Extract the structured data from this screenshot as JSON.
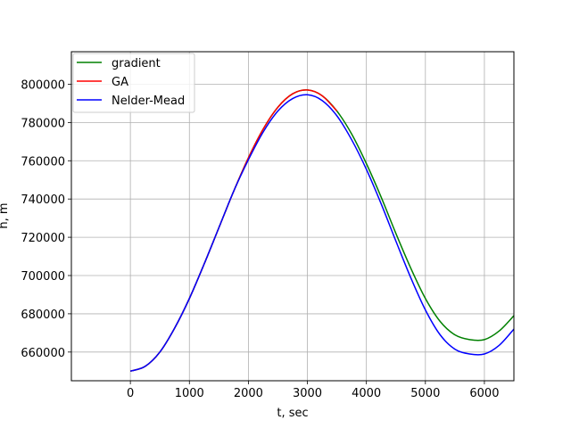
{
  "chart_data": {
    "type": "line",
    "title": "",
    "xlabel": "t, sec",
    "ylabel": "h, m",
    "xlim": [
      -1000,
      6500
    ],
    "ylim": [
      645000,
      817000
    ],
    "xticks": [
      0,
      1000,
      2000,
      3000,
      4000,
      5000,
      6000
    ],
    "yticks": [
      660000,
      680000,
      700000,
      720000,
      740000,
      760000,
      780000,
      800000
    ],
    "xtick_labels": [
      "0",
      "1000",
      "2000",
      "3000",
      "4000",
      "5000",
      "6000"
    ],
    "ytick_labels": [
      "660000",
      "680000",
      "700000",
      "720000",
      "740000",
      "760000",
      "780000",
      "800000"
    ],
    "grid": true,
    "legend_position": "top-left",
    "series": [
      {
        "name": "gradient",
        "color": "#008000",
        "x": [
          0,
          250,
          500,
          750,
          1000,
          1250,
          1500,
          1750,
          2000,
          2250,
          2500,
          2750,
          3000,
          3250,
          3500,
          3750,
          4000,
          4250,
          4500,
          4750,
          5000,
          5250,
          5500,
          5750,
          6000,
          6250,
          6500
        ],
        "y": [
          650000,
          652500,
          660000,
          672500,
          688000,
          706000,
          725000,
          744000,
          761500,
          776500,
          788000,
          795000,
          797000,
          794000,
          786000,
          774000,
          758500,
          741000,
          722000,
          704000,
          688000,
          676000,
          669000,
          666500,
          666500,
          671000,
          679000
        ]
      },
      {
        "name": "GA",
        "color": "#ff0000",
        "x": [
          0,
          250,
          500,
          750,
          1000,
          1250,
          1500,
          1750,
          2000,
          2250,
          2500,
          2750,
          3000,
          3250,
          3500
        ],
        "y": [
          650000,
          652500,
          660000,
          672500,
          688000,
          706000,
          725000,
          744000,
          761500,
          776500,
          788000,
          795000,
          797000,
          794000,
          786000
        ]
      },
      {
        "name": "Nelder-Mead",
        "color": "#0000ff",
        "x": [
          0,
          250,
          500,
          750,
          1000,
          1250,
          1500,
          1750,
          2000,
          2250,
          2500,
          2750,
          3000,
          3250,
          3500,
          3750,
          4000,
          4250,
          4500,
          4750,
          5000,
          5250,
          5500,
          5750,
          6000,
          6250,
          6500
        ],
        "y": [
          650000,
          652500,
          660000,
          672500,
          688000,
          706000,
          725000,
          744000,
          760500,
          775000,
          786000,
          792500,
          794500,
          791500,
          783500,
          771000,
          755500,
          737500,
          718000,
          699000,
          682000,
          669000,
          661500,
          659000,
          659000,
          663500,
          672000
        ]
      }
    ]
  }
}
